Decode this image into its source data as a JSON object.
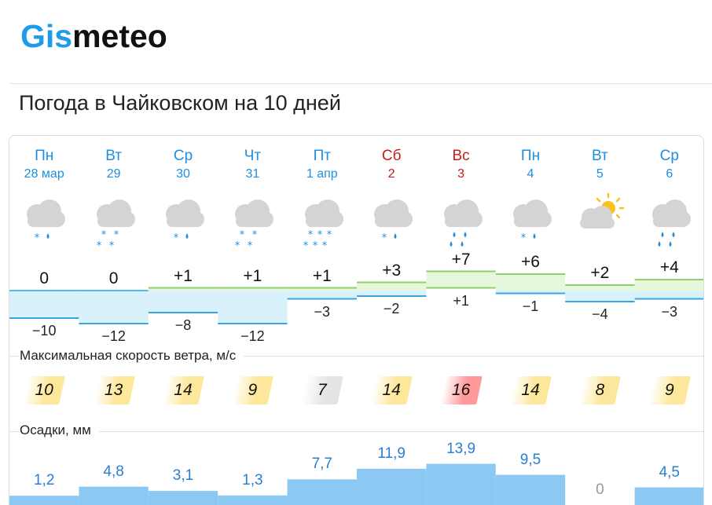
{
  "logo": {
    "part1": "Gis",
    "part2": "meteo"
  },
  "page_title": "Погода в Чайковском на 10 дней",
  "colors": {
    "accent": "#1e9be9",
    "weekend": "#c51b1b",
    "precip": "#2a7fd4",
    "wind_yellow": "#fde79a",
    "wind_gray": "#e4e4e4",
    "wind_red": "#ff9a9a",
    "cold_fill": "#d9f1fb",
    "warm_fill": "#e6f7dc"
  },
  "days": [
    {
      "name": "Пн",
      "date": "28 мар",
      "weekend": false,
      "icon": "cloud-snow-rain-icon",
      "tmax": "0",
      "tmin": "−10",
      "tmax_v": 0,
      "tmin_v": -10,
      "wind": "10",
      "wind_level": "yellow",
      "precip": "1,2",
      "precip_v": 1.2
    },
    {
      "name": "Вт",
      "date": "29",
      "weekend": false,
      "icon": "cloud-snow-icon",
      "tmax": "0",
      "tmin": "−12",
      "tmax_v": 0,
      "tmin_v": -12,
      "wind": "13",
      "wind_level": "yellow",
      "precip": "4,8",
      "precip_v": 4.8
    },
    {
      "name": "Ср",
      "date": "30",
      "weekend": false,
      "icon": "cloud-snow-rain-icon",
      "tmax": "+1",
      "tmin": "−8",
      "tmax_v": 1,
      "tmin_v": -8,
      "wind": "14",
      "wind_level": "yellow",
      "precip": "3,1",
      "precip_v": 3.1
    },
    {
      "name": "Чт",
      "date": "31",
      "weekend": false,
      "icon": "cloud-snow-icon",
      "tmax": "+1",
      "tmin": "−12",
      "tmax_v": 1,
      "tmin_v": -12,
      "wind": "9",
      "wind_level": "yellow",
      "precip": "1,3",
      "precip_v": 1.3
    },
    {
      "name": "Пт",
      "date": "1 апр",
      "weekend": false,
      "icon": "cloud-heavy-snow-icon",
      "tmax": "+1",
      "tmin": "−3",
      "tmax_v": 1,
      "tmin_v": -3,
      "wind": "7",
      "wind_level": "gray",
      "precip": "7,7",
      "precip_v": 7.7
    },
    {
      "name": "Сб",
      "date": "2",
      "weekend": true,
      "icon": "cloud-snow-rain-icon",
      "tmax": "+3",
      "tmin": "−2",
      "tmax_v": 3,
      "tmin_v": -2,
      "wind": "14",
      "wind_level": "yellow",
      "precip": "11,9",
      "precip_v": 11.9
    },
    {
      "name": "Вс",
      "date": "3",
      "weekend": true,
      "icon": "cloud-rain-icon",
      "tmax": "+7",
      "tmin": "+1",
      "tmax_v": 7,
      "tmin_v": 1,
      "wind": "16",
      "wind_level": "red",
      "precip": "13,9",
      "precip_v": 13.9
    },
    {
      "name": "Пн",
      "date": "4",
      "weekend": false,
      "icon": "cloud-snow-rain-icon",
      "tmax": "+6",
      "tmin": "−1",
      "tmax_v": 6,
      "tmin_v": -1,
      "wind": "14",
      "wind_level": "yellow",
      "precip": "9,5",
      "precip_v": 9.5
    },
    {
      "name": "Вт",
      "date": "5",
      "weekend": false,
      "icon": "sun-cloud-icon",
      "tmax": "+2",
      "tmin": "−4",
      "tmax_v": 2,
      "tmin_v": -4,
      "wind": "8",
      "wind_level": "yellow",
      "precip": "0",
      "precip_v": 0
    },
    {
      "name": "Ср",
      "date": "6",
      "weekend": false,
      "icon": "cloud-rain-icon",
      "tmax": "+4",
      "tmin": "−3",
      "tmax_v": 4,
      "tmin_v": -3,
      "wind": "9",
      "wind_level": "yellow",
      "precip": "4,5",
      "precip_v": 4.5
    }
  ],
  "wind_label": "Максимальная скорость ветра, м/с",
  "precip_label": "Осадки, мм"
}
